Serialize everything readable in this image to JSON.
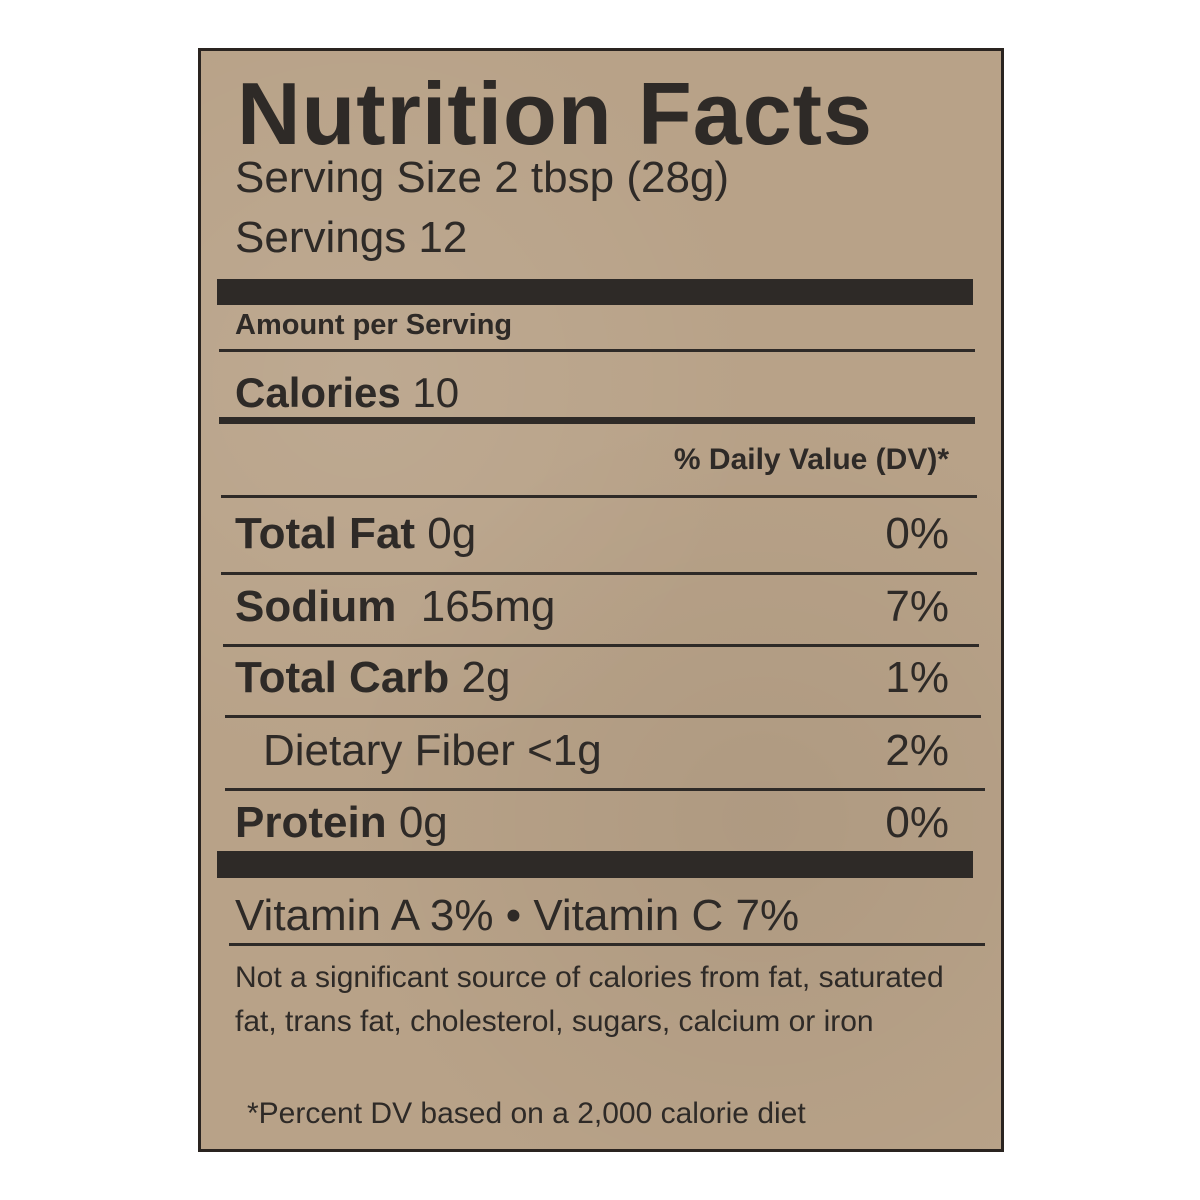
{
  "title": "Nutrition Facts",
  "serving_size": "Serving Size 2 tbsp (28g)",
  "servings": "Servings 12",
  "amount_per_serving": "Amount per Serving",
  "calories": {
    "label": "Calories",
    "value": "10"
  },
  "dv_header": "% Daily Value (DV)*",
  "nutrients": [
    {
      "name": "Total Fat",
      "amount": "0g",
      "dv": "0%"
    },
    {
      "name": "Sodium",
      "amount": "165mg",
      "dv": "7%"
    },
    {
      "name": "Total Carb",
      "amount": "2g",
      "dv": "1%"
    },
    {
      "name": "Dietary Fiber",
      "amount": "<1g",
      "dv": "2%"
    },
    {
      "name": "Protein",
      "amount": "0g",
      "dv": "0%"
    }
  ],
  "vitamins": {
    "a": "Vitamin A 3%",
    "separator": "•",
    "c": "Vitamin C 7%"
  },
  "note": "Not a significant source of calories from fat, saturated fat, trans fat, cholesterol, sugars, calcium or iron",
  "footnote": "*Percent DV based  on a 2,000 calorie diet",
  "colors": {
    "background": "#b8a288",
    "ink": "#2e2a27"
  }
}
